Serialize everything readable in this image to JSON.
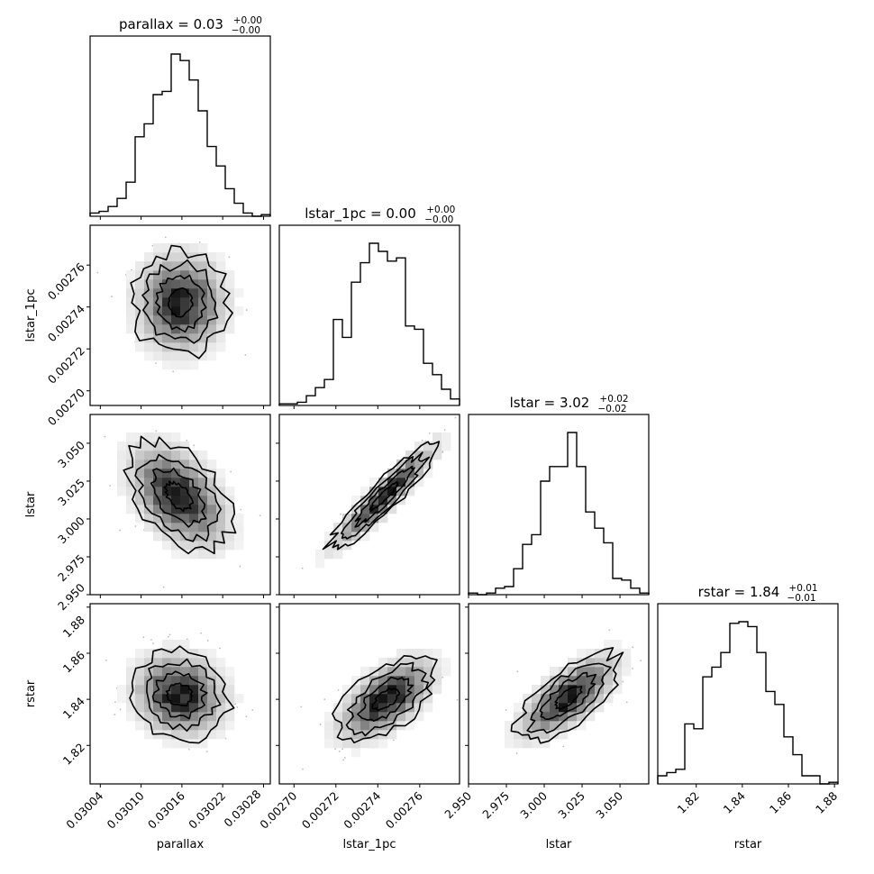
{
  "chart_data": {
    "type": "corner",
    "parameters": [
      "parallax",
      "lstar_1pc",
      "lstar",
      "rstar"
    ],
    "titles": [
      {
        "param": "parallax",
        "label": "parallax = 0.03",
        "plus": "+0.00",
        "minus": "−0.00"
      },
      {
        "param": "lstar_1pc",
        "label": "lstar_1pc = 0.00",
        "plus": "+0.00",
        "minus": "−0.00"
      },
      {
        "param": "lstar",
        "label": "lstar = 3.02",
        "plus": "+0.02",
        "minus": "−0.02"
      },
      {
        "param": "rstar",
        "label": "rstar = 1.84",
        "plus": "+0.01",
        "minus": "−0.01"
      }
    ],
    "axes": [
      {
        "name": "parallax",
        "range": [
          0.030025,
          0.03029
        ],
        "ticks": [
          0.03004,
          0.0301,
          0.03016,
          0.03022,
          0.03028
        ],
        "tick_labels": [
          "0.03004",
          "0.03010",
          "0.03016",
          "0.03022",
          "0.03028"
        ]
      },
      {
        "name": "lstar_1pc",
        "range": [
          0.002693,
          0.002779
        ],
        "ticks": [
          0.0027,
          0.00272,
          0.00274,
          0.00276
        ],
        "tick_labels": [
          "0.00270",
          "0.00272",
          "0.00274",
          "0.00276"
        ]
      },
      {
        "name": "lstar",
        "range": [
          2.95,
          3.069
        ],
        "ticks": [
          2.95,
          2.975,
          3.0,
          3.025,
          3.05
        ],
        "tick_labels": [
          "2.950",
          "2.975",
          "3.000",
          "3.025",
          "3.050"
        ]
      },
      {
        "name": "rstar",
        "range": [
          1.8033,
          1.8815
        ],
        "ticks": [
          1.82,
          1.84,
          1.86,
          1.88
        ],
        "tick_labels": [
          "1.82",
          "1.84",
          "1.86",
          "1.88"
        ]
      }
    ],
    "histograms": [
      {
        "param": "parallax",
        "bins": 20,
        "values": [
          0.02,
          0.03,
          0.06,
          0.11,
          0.21,
          0.49,
          0.57,
          0.75,
          0.77,
          1.0,
          0.96,
          0.84,
          0.65,
          0.43,
          0.31,
          0.17,
          0.08,
          0.02,
          0.0,
          0.01
        ]
      },
      {
        "param": "lstar_1pc",
        "bins": 20,
        "values": [
          0.01,
          0.01,
          0.02,
          0.06,
          0.11,
          0.16,
          0.53,
          0.42,
          0.76,
          0.88,
          1.0,
          0.95,
          0.89,
          0.91,
          0.49,
          0.47,
          0.26,
          0.19,
          0.1,
          0.04
        ]
      },
      {
        "param": "lstar",
        "bins": 20,
        "values": [
          0.01,
          0.0,
          0.01,
          0.04,
          0.05,
          0.16,
          0.31,
          0.37,
          0.7,
          0.79,
          0.79,
          1.0,
          0.79,
          0.51,
          0.41,
          0.32,
          0.1,
          0.09,
          0.04,
          0.01
        ]
      },
      {
        "param": "rstar",
        "bins": 20,
        "values": [
          0.05,
          0.07,
          0.09,
          0.37,
          0.34,
          0.66,
          0.72,
          0.81,
          0.99,
          1.0,
          0.97,
          0.81,
          0.57,
          0.49,
          0.29,
          0.18,
          0.05,
          0.05,
          0.0,
          0.01
        ]
      }
    ],
    "pairs": [
      {
        "x": "parallax",
        "y": "lstar_1pc",
        "center": [
          0.030158,
          0.002742
        ],
        "sigma": [
          3.5e-05,
          1.25e-05
        ],
        "correlation": 0.0
      },
      {
        "x": "parallax",
        "y": "lstar",
        "center": [
          0.030155,
          3.015
        ],
        "sigma": [
          3.8e-05,
          0.018
        ],
        "correlation": -0.45
      },
      {
        "x": "lstar_1pc",
        "y": "lstar",
        "center": [
          0.002743,
          3.015
        ],
        "sigma": [
          1.3e-05,
          0.018
        ],
        "correlation": 0.93
      },
      {
        "x": "parallax",
        "y": "rstar",
        "center": [
          0.030157,
          1.842
        ],
        "sigma": [
          3.6e-05,
          0.0095
        ],
        "correlation": -0.1
      },
      {
        "x": "lstar_1pc",
        "y": "rstar",
        "center": [
          0.002744,
          1.84
        ],
        "sigma": [
          1.2e-05,
          0.0095
        ],
        "correlation": 0.6
      },
      {
        "x": "lstar",
        "y": "rstar",
        "center": [
          3.016,
          1.841
        ],
        "sigma": [
          0.017,
          0.0095
        ],
        "correlation": 0.7
      }
    ],
    "contour_levels_sigma": [
      0.5,
      1.0,
      1.5,
      2.0
    ],
    "xlabels": [
      "parallax",
      "lstar_1pc",
      "lstar",
      "rstar"
    ],
    "ylabels": [
      "lstar_1pc",
      "lstar",
      "rstar"
    ],
    "grid": false,
    "legend": "none"
  }
}
